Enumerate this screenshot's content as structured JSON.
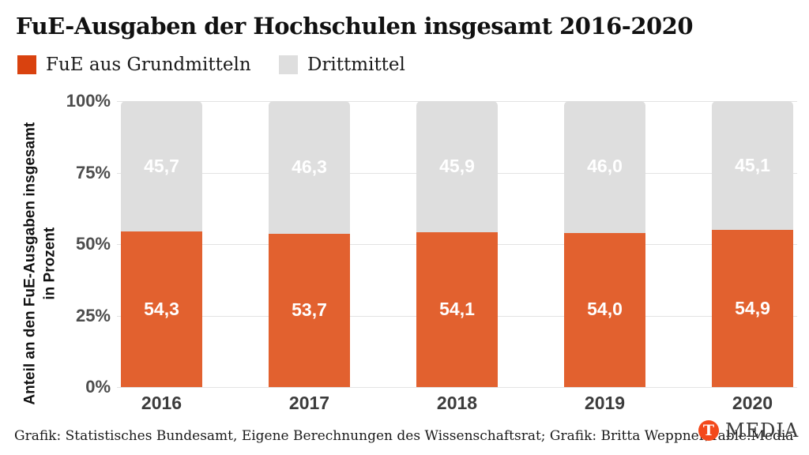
{
  "title": "FuE-Ausgaben der Hochschulen insgesamt 2016-2020",
  "legend": {
    "items": [
      {
        "label": "FuE aus Grundmitteln",
        "color": "#d9420f"
      },
      {
        "label": "Drittmittel",
        "color": "#dedede"
      }
    ]
  },
  "chart_data": {
    "type": "bar",
    "subtype": "stacked-percentage-column",
    "title": "FuE-Ausgaben der Hochschulen insgesamt 2016-2020",
    "categories": [
      "2016",
      "2017",
      "2018",
      "2019",
      "2020"
    ],
    "series": [
      {
        "name": "FuE aus Grundmitteln",
        "color": "#e2612f",
        "values": [
          54.3,
          53.7,
          54.1,
          54.0,
          54.9
        ],
        "labels": [
          "54,3",
          "53,7",
          "54,1",
          "54,0",
          "54,9"
        ]
      },
      {
        "name": "Drittmittel",
        "color": "#dedede",
        "values": [
          45.7,
          46.3,
          45.9,
          46.0,
          45.1
        ],
        "labels": [
          "45,7",
          "46,3",
          "45,9",
          "46,0",
          "45,1"
        ]
      }
    ],
    "ylabel_line1": "Anteil an den FuE-Ausgaben insgesamt",
    "ylabel_line2": "in Prozent",
    "xlabel": "",
    "ylim": [
      0,
      100
    ],
    "yticks": [
      {
        "value": 0,
        "label": "0%"
      },
      {
        "value": 25,
        "label": "25%"
      },
      {
        "value": 50,
        "label": "50%"
      },
      {
        "value": 75,
        "label": "75%"
      },
      {
        "value": 100,
        "label": "100%"
      }
    ],
    "grid": "horizontal",
    "legend_position": "top-left",
    "value_labels": "inside-white"
  },
  "footer": {
    "source": "Grafik: Statistisches Bundesamt, Eigene Berechnungen des Wissenschaftsrat; Grafik: Britta Weppner/Table.Media",
    "logo": {
      "letter": "T",
      "word": "MEDIA",
      "circle_color": "#f3491b"
    }
  }
}
